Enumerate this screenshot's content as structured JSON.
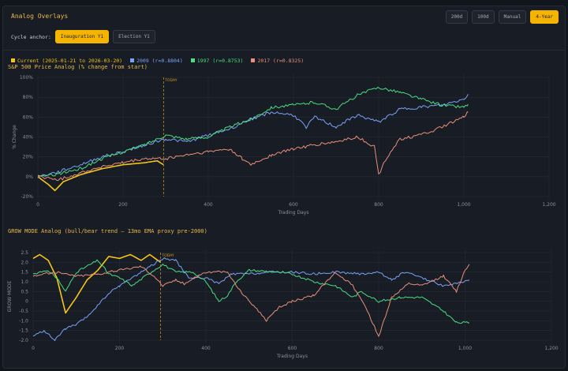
{
  "header": {
    "title": "Analog Overlays",
    "range_buttons": [
      "200d",
      "100d",
      "Manual",
      "4-Year"
    ],
    "active": "4-Year"
  },
  "anchor": {
    "label": "Cycle anchor:",
    "options": [
      "Inauguration Y1",
      "Election Y1"
    ],
    "active": "Inauguration Y1"
  },
  "legend": [
    {
      "label": "Current (2025-01-21 to 2026-03-20)",
      "color": "#f5c518"
    },
    {
      "label": "2009 (r=0.8804)",
      "color": "#7aa2f7"
    },
    {
      "label": "1997 (r=0.8753)",
      "color": "#4ade80"
    },
    {
      "label": "2017 (r=0.8325)",
      "color": "#e8907a"
    }
  ],
  "chart_data": [
    {
      "type": "line",
      "title": "S&P 500 Price Analog (% change from start)",
      "xlabel": "Trading Days",
      "ylabel": "% Change",
      "xlim": [
        0,
        1200
      ],
      "ylim": [
        -20,
        100
      ],
      "xticks": [
        "0",
        "200",
        "400",
        "600",
        "800",
        "1,000",
        "1,200"
      ],
      "yticks": [
        "-20%",
        "0%",
        "20%",
        "40%",
        "60%",
        "80%",
        "100%"
      ],
      "today_label": "TODAY",
      "today_x": 295,
      "series": [
        {
          "name": "Current",
          "color": "#f5c518",
          "points": [
            [
              0,
              0
            ],
            [
              25,
              -8
            ],
            [
              40,
              -14
            ],
            [
              60,
              -5
            ],
            [
              100,
              2
            ],
            [
              150,
              8
            ],
            [
              200,
              12
            ],
            [
              250,
              14
            ],
            [
              280,
              16
            ],
            [
              295,
              12
            ]
          ]
        },
        {
          "name": "2009",
          "color": "#7aa2f7",
          "points": [
            [
              0,
              0
            ],
            [
              50,
              5
            ],
            [
              100,
              12
            ],
            [
              150,
              20
            ],
            [
              200,
              25
            ],
            [
              250,
              32
            ],
            [
              300,
              38
            ],
            [
              350,
              35
            ],
            [
              400,
              42
            ],
            [
              450,
              48
            ],
            [
              500,
              58
            ],
            [
              550,
              65
            ],
            [
              600,
              62
            ],
            [
              630,
              50
            ],
            [
              650,
              60
            ],
            [
              700,
              50
            ],
            [
              750,
              62
            ],
            [
              800,
              55
            ],
            [
              850,
              68
            ],
            [
              900,
              70
            ],
            [
              950,
              72
            ],
            [
              1000,
              78
            ],
            [
              1010,
              83
            ]
          ]
        },
        {
          "name": "1997",
          "color": "#4ade80",
          "points": [
            [
              0,
              0
            ],
            [
              50,
              3
            ],
            [
              100,
              8
            ],
            [
              150,
              18
            ],
            [
              200,
              25
            ],
            [
              250,
              32
            ],
            [
              300,
              42
            ],
            [
              350,
              38
            ],
            [
              400,
              40
            ],
            [
              450,
              50
            ],
            [
              500,
              58
            ],
            [
              550,
              70
            ],
            [
              600,
              72
            ],
            [
              650,
              75
            ],
            [
              700,
              68
            ],
            [
              750,
              82
            ],
            [
              800,
              90
            ],
            [
              850,
              85
            ],
            [
              900,
              78
            ],
            [
              950,
              72
            ],
            [
              1000,
              70
            ],
            [
              1010,
              73
            ]
          ]
        },
        {
          "name": "2017",
          "color": "#e8907a",
          "points": [
            [
              0,
              0
            ],
            [
              50,
              -3
            ],
            [
              100,
              4
            ],
            [
              150,
              10
            ],
            [
              200,
              14
            ],
            [
              250,
              18
            ],
            [
              300,
              18
            ],
            [
              350,
              22
            ],
            [
              400,
              25
            ],
            [
              450,
              28
            ],
            [
              480,
              18
            ],
            [
              500,
              12
            ],
            [
              550,
              22
            ],
            [
              600,
              28
            ],
            [
              650,
              32
            ],
            [
              700,
              35
            ],
            [
              750,
              40
            ],
            [
              790,
              30
            ],
            [
              800,
              2
            ],
            [
              820,
              20
            ],
            [
              850,
              38
            ],
            [
              900,
              42
            ],
            [
              950,
              50
            ],
            [
              1000,
              60
            ],
            [
              1010,
              65
            ]
          ]
        }
      ]
    },
    {
      "type": "line",
      "title": "GROW MODE Analog (bull/bear trend — 13mo EMA proxy pre-2000)",
      "xlabel": "Trading Days",
      "ylabel": "GROW MODE",
      "xlim": [
        0,
        1200
      ],
      "ylim": [
        -2,
        2.5
      ],
      "xticks": [
        "0",
        "200",
        "400",
        "600",
        "800",
        "1,000",
        "1,200"
      ],
      "yticks": [
        "-2.0",
        "-1.5",
        "-1.0",
        "-0.5",
        "0",
        "0.5",
        "1.0",
        "1.5",
        "2.0",
        "2.5"
      ],
      "today_label": "TODAY",
      "today_x": 295,
      "series": [
        {
          "name": "Current",
          "color": "#f5c518",
          "points": [
            [
              0,
              2.2
            ],
            [
              15,
              2.4
            ],
            [
              35,
              2.1
            ],
            [
              55,
              1.2
            ],
            [
              75,
              -0.6
            ],
            [
              100,
              0.2
            ],
            [
              125,
              1.1
            ],
            [
              150,
              1.6
            ],
            [
              175,
              2.3
            ],
            [
              200,
              2.2
            ],
            [
              225,
              2.4
            ],
            [
              250,
              2.1
            ],
            [
              270,
              2.4
            ],
            [
              295,
              2.0
            ]
          ]
        },
        {
          "name": "2009",
          "color": "#7aa2f7",
          "points": [
            [
              0,
              -1.8
            ],
            [
              25,
              -1.5
            ],
            [
              50,
              -2.0
            ],
            [
              75,
              -1.4
            ],
            [
              100,
              -1.2
            ],
            [
              125,
              -0.8
            ],
            [
              150,
              -0.2
            ],
            [
              175,
              0.4
            ],
            [
              200,
              0.8
            ],
            [
              250,
              1.5
            ],
            [
              300,
              2.2
            ],
            [
              330,
              2.1
            ],
            [
              360,
              1.2
            ],
            [
              400,
              1.2
            ],
            [
              430,
              0.9
            ],
            [
              460,
              1.4
            ],
            [
              500,
              1.4
            ],
            [
              550,
              1.5
            ],
            [
              600,
              1.5
            ],
            [
              650,
              1.4
            ],
            [
              700,
              1.5
            ],
            [
              760,
              1.4
            ],
            [
              800,
              1.5
            ],
            [
              830,
              1.1
            ],
            [
              860,
              1.5
            ],
            [
              900,
              1.2
            ],
            [
              950,
              0.8
            ],
            [
              1000,
              1.0
            ],
            [
              1010,
              1.1
            ]
          ]
        },
        {
          "name": "1997",
          "color": "#4ade80",
          "points": [
            [
              0,
              1.4
            ],
            [
              30,
              1.6
            ],
            [
              55,
              1.2
            ],
            [
              75,
              0.5
            ],
            [
              100,
              1.5
            ],
            [
              150,
              2.1
            ],
            [
              175,
              1.4
            ],
            [
              200,
              1.2
            ],
            [
              230,
              0.8
            ],
            [
              260,
              1.3
            ],
            [
              300,
              1.9
            ],
            [
              330,
              1.5
            ],
            [
              370,
              1.5
            ],
            [
              400,
              1.0
            ],
            [
              430,
              0.0
            ],
            [
              450,
              0.3
            ],
            [
              470,
              1.0
            ],
            [
              500,
              1.6
            ],
            [
              560,
              1.5
            ],
            [
              600,
              1.4
            ],
            [
              650,
              1.0
            ],
            [
              700,
              0.8
            ],
            [
              740,
              0.2
            ],
            [
              760,
              0.5
            ],
            [
              800,
              0.0
            ],
            [
              850,
              0.2
            ],
            [
              900,
              0.2
            ],
            [
              950,
              -0.5
            ],
            [
              980,
              -1.1
            ],
            [
              1010,
              -1.1
            ]
          ]
        },
        {
          "name": "2017",
          "color": "#e8907a",
          "points": [
            [
              0,
              1.3
            ],
            [
              50,
              1.5
            ],
            [
              100,
              1.3
            ],
            [
              150,
              1.4
            ],
            [
              200,
              1.6
            ],
            [
              250,
              1.8
            ],
            [
              280,
              1.3
            ],
            [
              300,
              0.8
            ],
            [
              330,
              1.1
            ],
            [
              350,
              0.9
            ],
            [
              380,
              1.3
            ],
            [
              400,
              1.5
            ],
            [
              450,
              1.5
            ],
            [
              480,
              0.5
            ],
            [
              510,
              -0.2
            ],
            [
              540,
              -1.0
            ],
            [
              570,
              -0.3
            ],
            [
              600,
              0.0
            ],
            [
              650,
              0.3
            ],
            [
              700,
              1.5
            ],
            [
              740,
              0.8
            ],
            [
              770,
              -0.3
            ],
            [
              800,
              -1.8
            ],
            [
              830,
              0.2
            ],
            [
              870,
              0.9
            ],
            [
              900,
              0.8
            ],
            [
              950,
              1.3
            ],
            [
              980,
              0.5
            ],
            [
              1000,
              1.6
            ],
            [
              1010,
              1.9
            ]
          ]
        }
      ]
    }
  ]
}
